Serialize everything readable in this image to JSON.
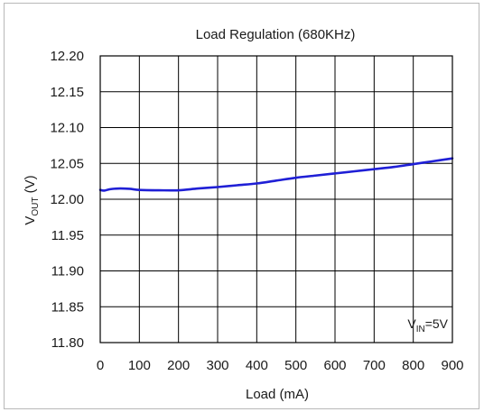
{
  "chart_data": {
    "type": "line",
    "title": "Load Regulation (680KHz)",
    "xlabel": "Load (mA)",
    "ylabel": {
      "main": "V",
      "sub": "OUT",
      "unit": " (V)"
    },
    "xlim": [
      0,
      900
    ],
    "ylim": [
      11.8,
      12.2
    ],
    "x_ticks": [
      0,
      100,
      200,
      300,
      400,
      500,
      600,
      700,
      800,
      900
    ],
    "x_tick_labels": [
      "0",
      "100",
      "200",
      "300",
      "400",
      "500",
      "600",
      "700",
      "800",
      "900"
    ],
    "y_ticks": [
      11.8,
      11.85,
      11.9,
      11.95,
      12.0,
      12.05,
      12.1,
      12.15,
      12.2
    ],
    "y_tick_labels": [
      "11.80",
      "11.85",
      "11.90",
      "11.95",
      "12.00",
      "12.05",
      "12.10",
      "12.15",
      "12.20"
    ],
    "grid": true,
    "annotation": {
      "main": "V",
      "sub": "IN",
      "rest": "=5V",
      "placement": "bottom-right"
    },
    "series": [
      {
        "color": "#1f1fd6",
        "x": [
          0,
          10,
          25,
          50,
          75,
          100,
          150,
          200,
          250,
          300,
          350,
          400,
          450,
          500,
          550,
          600,
          650,
          700,
          750,
          800,
          850,
          900
        ],
        "y": [
          12.013,
          12.012,
          12.014,
          12.015,
          12.0145,
          12.013,
          12.0125,
          12.0125,
          12.015,
          12.017,
          12.0195,
          12.022,
          12.026,
          12.03,
          12.033,
          12.036,
          12.039,
          12.042,
          12.045,
          12.049,
          12.053,
          12.057
        ]
      }
    ]
  }
}
